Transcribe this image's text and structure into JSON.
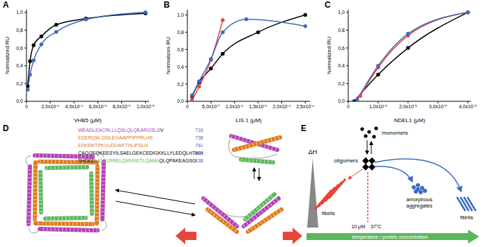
{
  "chart_data": [
    {
      "panel_label": "A",
      "type": "line",
      "x_label": "VHB5 (μM)",
      "y_label": "Normalized RU",
      "marker": "circle",
      "xlim": [
        0,
        1.03e-05
      ],
      "xticks": [
        0,
        {
          "value": 2e-06,
          "label": "2,0x10⁻⁶"
        },
        {
          "value": 4e-06,
          "label": "4,0x10⁻⁶"
        },
        {
          "value": 6e-06,
          "label": "6,0x10⁻⁶"
        },
        {
          "value": 8e-06,
          "label": "8,0x10⁻⁶"
        },
        {
          "value": 1e-05,
          "label": "1,0x10⁻⁵"
        }
      ],
      "ylim": [
        0,
        1.03
      ],
      "yticks": [
        {
          "value": 0,
          "label": "0,0"
        },
        {
          "value": 0.2,
          "label": "0,2"
        },
        {
          "value": 0.4,
          "label": "0,4"
        },
        {
          "value": 0.6,
          "label": "0,6"
        },
        {
          "value": 0.8,
          "label": "0,8"
        },
        {
          "value": 1,
          "label": "1,0"
        }
      ],
      "series": [
        {
          "color": "#000000",
          "x": [
            1e-07,
            3e-07,
            6e-07,
            1.25e-06,
            2.5e-06,
            5e-06,
            1e-05
          ],
          "values": [
            0.17,
            0.45,
            0.63,
            0.73,
            0.86,
            0.93,
            0.99
          ]
        },
        {
          "color": "#3d6cc0",
          "x": [
            1e-07,
            3e-07,
            6e-07,
            1.25e-06,
            2.5e-06,
            5e-06,
            1e-05
          ],
          "values": [
            0.13,
            0.3,
            0.46,
            0.64,
            0.78,
            0.92,
            1.0
          ]
        }
      ]
    },
    {
      "panel_label": "B",
      "type": "line",
      "x_label": "LIS 1 (μM)",
      "y_label": "Normalizes RU",
      "marker": "circle",
      "xlim": [
        0,
        2.6e-06
      ],
      "xticks": [
        0,
        {
          "value": 5e-07,
          "label": "5,0x10⁻⁷"
        },
        {
          "value": 1e-06,
          "label": "1,0x10⁻⁶"
        },
        {
          "value": 1.5e-06,
          "label": "1,5x10⁻⁶"
        },
        {
          "value": 2e-06,
          "label": "2,0x10⁻⁶"
        },
        {
          "value": 2.5e-06,
          "label": "2,5x10⁻⁶"
        }
      ],
      "ylim": [
        0,
        1.06
      ],
      "yticks": [
        {
          "value": 0,
          "label": "0,0"
        },
        {
          "value": 0.2,
          "label": "0,2"
        },
        {
          "value": 0.4,
          "label": "0,4"
        },
        {
          "value": 0.6,
          "label": "0,6"
        },
        {
          "value": 0.8,
          "label": "0,8"
        },
        {
          "value": 1,
          "label": "1,0"
        }
      ],
      "series": [
        {
          "color": "#000000",
          "x": [
            1e-07,
            2.5e-07,
            5e-07,
            7.5e-07,
            1.5e-06,
            2.5e-06
          ],
          "values": [
            0.06,
            0.22,
            0.38,
            0.55,
            0.8,
            1.0
          ]
        },
        {
          "color": "#e8453c",
          "x": [
            1e-07,
            2.5e-07,
            5e-07,
            7.5e-07
          ],
          "values": [
            0.02,
            0.17,
            0.48,
            0.94
          ]
        },
        {
          "color": "#3d6cc0",
          "x": [
            1e-07,
            2.5e-07,
            5e-07,
            7.5e-07,
            1.25e-06,
            2.5e-06
          ],
          "values": [
            0.07,
            0.23,
            0.49,
            0.8,
            0.95,
            0.87
          ]
        }
      ]
    },
    {
      "panel_label": "C",
      "type": "line",
      "x_label": "NDEL1 (μM)",
      "y_label": "Normalized RU",
      "marker": "circle",
      "xlim": [
        0,
        4.1e-05
      ],
      "xticks": [
        0,
        {
          "value": 1e-05,
          "label": "1,0x10⁻⁵"
        },
        {
          "value": 2e-05,
          "label": "2,0x10⁻⁵"
        },
        {
          "value": 3e-05,
          "label": "3,0x10⁻⁵"
        },
        {
          "value": 4e-05,
          "label": "4,0x10⁻⁵"
        }
      ],
      "ylim": [
        0,
        1.03
      ],
      "yticks": [
        {
          "value": 0,
          "label": "0,0"
        },
        {
          "value": 0.2,
          "label": "0,2"
        },
        {
          "value": 0.4,
          "label": "0,4"
        },
        {
          "value": 0.6,
          "label": "0,6"
        },
        {
          "value": 0.8,
          "label": "0,8"
        },
        {
          "value": 1,
          "label": "1,0"
        }
      ],
      "series": [
        {
          "color": "#000000",
          "x": [
            2e-06,
            1e-05,
            2e-05,
            4e-05
          ],
          "values": [
            0.0,
            0.3,
            0.6,
            1.0
          ]
        },
        {
          "color": "#e8453c",
          "x": [
            4e-06,
            1e-05,
            2e-05,
            4e-05
          ],
          "values": [
            0.06,
            0.38,
            0.74,
            1.0
          ]
        },
        {
          "color": "#3d6cc0",
          "x": [
            3e-06,
            1e-05,
            2e-05,
            4e-05
          ],
          "values": [
            0.02,
            0.4,
            0.76,
            1.0
          ]
        }
      ]
    }
  ],
  "diagram": {
    "D": {
      "panel_label": "D",
      "number_color": "#3d6cc0",
      "sequence": [
        {
          "segments": [
            {
              "text": "WEADLEACRLLLQSLQLQEARGSLS",
              "color": "#b23fb5"
            },
            {
              "text": "V",
              "color": "#000000"
            }
          ],
          "number": 716
        },
        {
          "segments": [
            {
              "text": "EDERQM–DDLEGAAPPIPPRLHS",
              "color": "#e07a1a"
            }
          ],
          "number": 738
        },
        {
          "segments": [
            {
              "text": "EDKRKTPKVLEEWKTHLIPSLH",
              "color": "#e07a1a"
            }
          ],
          "number": 761
        },
        {
          "segments": [
            {
              "text": "CAGGEQKEESYILSAELGEKCEDIGKKLLYLEDQLHTAIH",
              "color": "#000000"
            }
          ],
          "number": 801
        },
        {
          "segments": [
            {
              "text": "SHDED",
              "color": "#000000"
            },
            {
              "text": "LIQSLRRELQMVKETLQAML",
              "color": "#5cb85c"
            },
            {
              "text": "QLQPAKEAGSG",
              "color": "#000000"
            }
          ],
          "number": 838
        }
      ]
    },
    "E": {
      "panel_label": "E",
      "delta_h": "ΔH",
      "monomers": "monomers",
      "oligomers": "oligomers",
      "fibrils_left": "fibrils",
      "amorphous": "amorphous aggregates",
      "fibrils_right": "fibrils",
      "concentration": "10 μM",
      "temperature": "37°C",
      "axis_label": "temperature / protein concentration"
    }
  }
}
